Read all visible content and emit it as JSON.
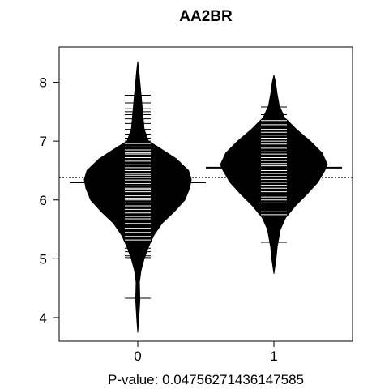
{
  "chart_data": {
    "type": "beanplot",
    "title": "AA2BR",
    "xlabel": "P-value: 0.04756271436147585",
    "ylabel": "",
    "categories": [
      "0",
      "1"
    ],
    "ylim": [
      3.6,
      8.6
    ],
    "yticks": [
      4,
      5,
      6,
      7,
      8
    ],
    "ytick_labels": [
      "4",
      "5",
      "6",
      "7",
      "8"
    ],
    "overall_mean": 6.38,
    "group_means": [
      6.3,
      6.55
    ],
    "grid": false,
    "groups": [
      {
        "name": "0",
        "range": [
          3.75,
          8.35
        ],
        "density": [
          [
            3.75,
            0.0
          ],
          [
            4.0,
            0.02
          ],
          [
            4.3,
            0.04
          ],
          [
            4.6,
            0.03
          ],
          [
            4.8,
            0.06
          ],
          [
            5.0,
            0.12
          ],
          [
            5.2,
            0.2
          ],
          [
            5.4,
            0.3
          ],
          [
            5.6,
            0.45
          ],
          [
            5.8,
            0.68
          ],
          [
            6.0,
            0.88
          ],
          [
            6.2,
            0.97
          ],
          [
            6.35,
            1.0
          ],
          [
            6.5,
            0.95
          ],
          [
            6.7,
            0.72
          ],
          [
            6.9,
            0.38
          ],
          [
            7.0,
            0.2
          ],
          [
            7.2,
            0.12
          ],
          [
            7.5,
            0.09
          ],
          [
            7.8,
            0.06
          ],
          [
            8.0,
            0.04
          ],
          [
            8.2,
            0.02
          ],
          [
            8.35,
            0.0
          ]
        ],
        "points": [
          4.33,
          5.02,
          5.05,
          5.08,
          5.12,
          5.18,
          5.32,
          5.38,
          5.45,
          5.52,
          5.6,
          5.68,
          5.72,
          5.78,
          5.84,
          5.9,
          5.95,
          6.0,
          6.03,
          6.07,
          6.1,
          6.14,
          6.18,
          6.2,
          6.24,
          6.28,
          6.3,
          6.34,
          6.38,
          6.42,
          6.45,
          6.5,
          6.55,
          6.6,
          6.66,
          6.72,
          6.78,
          6.8,
          6.85,
          6.9,
          6.96,
          7.0,
          7.05,
          7.12,
          7.2,
          7.3,
          7.38,
          7.45,
          7.5,
          7.55,
          7.65,
          7.78
        ]
      },
      {
        "name": "1",
        "range": [
          4.75,
          8.12
        ],
        "density": [
          [
            4.75,
            0.0
          ],
          [
            5.0,
            0.04
          ],
          [
            5.2,
            0.06
          ],
          [
            5.5,
            0.12
          ],
          [
            5.7,
            0.22
          ],
          [
            5.9,
            0.4
          ],
          [
            6.1,
            0.62
          ],
          [
            6.3,
            0.82
          ],
          [
            6.5,
            0.95
          ],
          [
            6.6,
            1.0
          ],
          [
            6.8,
            0.9
          ],
          [
            7.0,
            0.68
          ],
          [
            7.2,
            0.42
          ],
          [
            7.4,
            0.2
          ],
          [
            7.6,
            0.1
          ],
          [
            7.8,
            0.06
          ],
          [
            8.0,
            0.03
          ],
          [
            8.12,
            0.0
          ]
        ],
        "points": [
          5.28,
          5.75,
          5.8,
          5.88,
          5.95,
          6.0,
          6.05,
          6.1,
          6.14,
          6.2,
          6.25,
          6.3,
          6.35,
          6.4,
          6.45,
          6.5,
          6.55,
          6.58,
          6.62,
          6.67,
          6.72,
          6.78,
          6.82,
          6.88,
          6.95,
          7.0,
          7.05,
          7.1,
          7.15,
          7.2,
          7.28,
          7.35,
          7.45,
          7.58
        ]
      }
    ]
  }
}
